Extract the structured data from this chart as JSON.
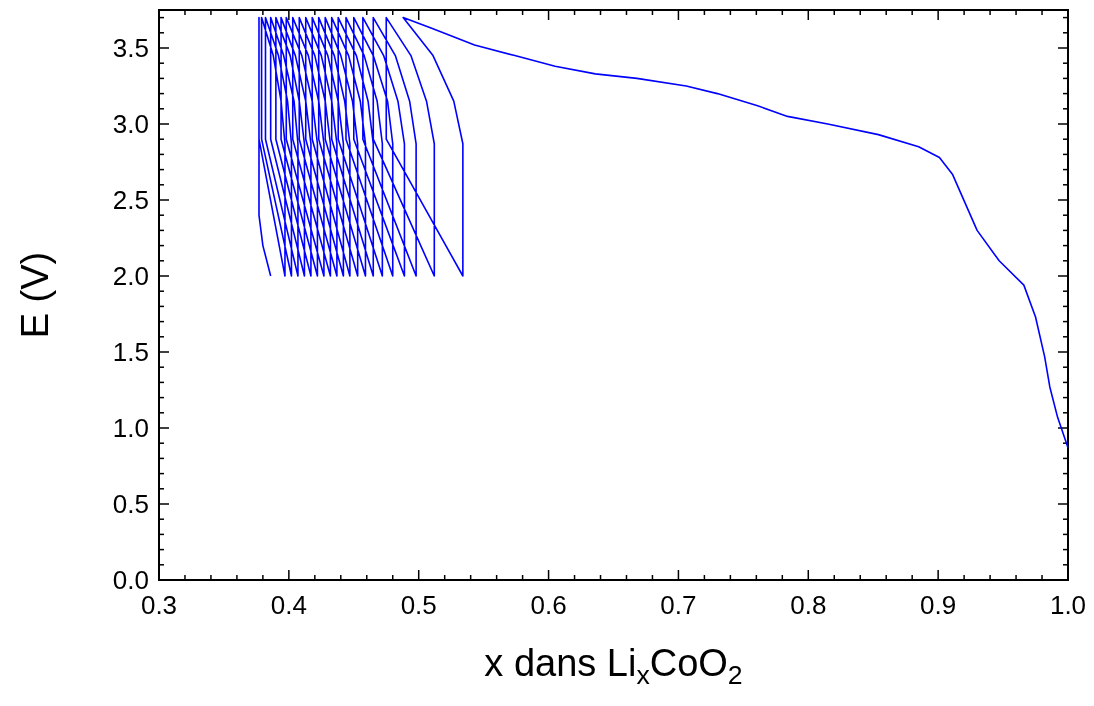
{
  "chart_data": {
    "type": "line",
    "xlabel": "x dans Li$_{x}$CoO$_{2}$",
    "ylabel": "E (V)",
    "xlim": [
      0.3,
      1.0
    ],
    "ylim": [
      0,
      3.75
    ],
    "xticks": [
      0.3,
      {
        "value": 0.32,
        "label": null
      },
      {
        "value": 0.34,
        "label": null
      },
      {
        "value": 0.36,
        "label": null
      },
      {
        "value": 0.38,
        "label": null
      },
      0.4,
      {
        "value": 0.42,
        "label": null
      },
      {
        "value": 0.44,
        "label": null
      },
      {
        "value": 0.46,
        "label": null
      },
      {
        "value": 0.48,
        "label": null
      },
      0.5,
      {
        "value": 0.52,
        "label": null
      },
      {
        "value": 0.54,
        "label": null
      },
      {
        "value": 0.56,
        "label": null
      },
      {
        "value": 0.58,
        "label": null
      },
      0.6,
      {
        "value": 0.62,
        "label": null
      },
      {
        "value": 0.64,
        "label": null
      },
      {
        "value": 0.66,
        "label": null
      },
      {
        "value": 0.68,
        "label": null
      },
      0.7,
      {
        "value": 0.72,
        "label": null
      },
      {
        "value": 0.74,
        "label": null
      },
      {
        "value": 0.76,
        "label": null
      },
      {
        "value": 0.78,
        "label": null
      },
      0.8,
      {
        "value": 0.82,
        "label": null
      },
      {
        "value": 0.84,
        "label": null
      },
      {
        "value": 0.86,
        "label": null
      },
      {
        "value": 0.88,
        "label": null
      },
      0.9,
      {
        "value": 0.92,
        "label": null
      },
      {
        "value": 0.94,
        "label": null
      },
      {
        "value": 0.96,
        "label": null
      },
      {
        "value": 0.98,
        "label": null
      },
      {
        "value": 1.0,
        "label": "1.0"
      }
    ],
    "yticks": [
      {
        "value": 0,
        "label": "0.0"
      },
      {
        "value": 0.1,
        "label": null
      },
      {
        "value": 0.2,
        "label": null
      },
      {
        "value": 0.3,
        "label": null
      },
      {
        "value": 0.4,
        "label": null
      },
      0.5,
      {
        "value": 0.6,
        "label": null
      },
      {
        "value": 0.7,
        "label": null
      },
      {
        "value": 0.8,
        "label": null
      },
      {
        "value": 0.9,
        "label": null
      },
      {
        "value": 1,
        "label": "1.0"
      },
      {
        "value": 1.1,
        "label": null
      },
      {
        "value": 1.2,
        "label": null
      },
      {
        "value": 1.3,
        "label": null
      },
      {
        "value": 1.4,
        "label": null
      },
      1.5,
      {
        "value": 1.6,
        "label": null
      },
      {
        "value": 1.7,
        "label": null
      },
      {
        "value": 1.8,
        "label": null
      },
      {
        "value": 1.9,
        "label": null
      },
      {
        "value": 2,
        "label": "2.0"
      },
      {
        "value": 2.1,
        "label": null
      },
      {
        "value": 2.2,
        "label": null
      },
      {
        "value": 2.3,
        "label": null
      },
      {
        "value": 2.4,
        "label": null
      },
      2.5,
      {
        "value": 2.6,
        "label": null
      },
      {
        "value": 2.7,
        "label": null
      },
      {
        "value": 2.8,
        "label": null
      },
      {
        "value": 2.9,
        "label": null
      },
      {
        "value": 3,
        "label": "3.0"
      },
      {
        "value": 3.1,
        "label": null
      },
      {
        "value": 3.2,
        "label": null
      },
      {
        "value": 3.3,
        "label": null
      },
      {
        "value": 3.4,
        "label": null
      },
      3.5,
      {
        "value": 3.6,
        "label": null
      },
      {
        "value": 3.7,
        "label": null
      }
    ],
    "grid": false,
    "marker": "none",
    "line_style": "solid",
    "series": [
      {
        "color": "#0000ff",
        "x": [
          1.0,
          0.992,
          0.986,
          0.982,
          0.975,
          0.966,
          0.947,
          0.93,
          0.911,
          0.901,
          0.885,
          0.854,
          0.815,
          0.784,
          0.761,
          0.73,
          0.706,
          0.668,
          0.636,
          0.605,
          0.574,
          0.543,
          0.51,
          0.488,
          0.511,
          0.527,
          0.534,
          0.534,
          0.475,
          0.475,
          0.494,
          0.506,
          0.512,
          0.512,
          0.465,
          0.465,
          0.482,
          0.493,
          0.498,
          0.498,
          0.457,
          0.457,
          0.473,
          0.484,
          0.489,
          0.489,
          0.45,
          0.45,
          0.465,
          0.476,
          0.48,
          0.48,
          0.444,
          0.444,
          0.458,
          0.468,
          0.472,
          0.472,
          0.438,
          0.438,
          0.452,
          0.461,
          0.465,
          0.465,
          0.433,
          0.433,
          0.446,
          0.455,
          0.459,
          0.459,
          0.428,
          0.428,
          0.44,
          0.449,
          0.453,
          0.453,
          0.423,
          0.423,
          0.435,
          0.443,
          0.447,
          0.447,
          0.418,
          0.418,
          0.43,
          0.438,
          0.442,
          0.442,
          0.413,
          0.413,
          0.425,
          0.433,
          0.437,
          0.437,
          0.408,
          0.408,
          0.42,
          0.428,
          0.432,
          0.432,
          0.403,
          0.403,
          0.415,
          0.423,
          0.427,
          0.427,
          0.398,
          0.398,
          0.41,
          0.418,
          0.422,
          0.422,
          0.394,
          0.394,
          0.405,
          0.413,
          0.417,
          0.417,
          0.39,
          0.39,
          0.401,
          0.408,
          0.412,
          0.412,
          0.386,
          0.386,
          0.396,
          0.404,
          0.407,
          0.407,
          0.382,
          0.382,
          0.392,
          0.399,
          0.402,
          0.402,
          0.379,
          0.379,
          0.388,
          0.394,
          0.397,
          0.397,
          0.377,
          0.377,
          0.377,
          0.38,
          0.386
        ],
        "values": [
          0.87,
          1.07,
          1.27,
          1.47,
          1.73,
          1.94,
          2.1,
          2.3,
          2.67,
          2.78,
          2.85,
          2.93,
          3.0,
          3.05,
          3.12,
          3.2,
          3.25,
          3.3,
          3.33,
          3.38,
          3.45,
          3.52,
          3.63,
          3.7,
          3.45,
          3.15,
          2.87,
          2.0,
          2.9,
          3.7,
          3.45,
          3.15,
          2.87,
          2.0,
          2.9,
          3.7,
          3.45,
          3.15,
          2.87,
          2.0,
          2.9,
          3.7,
          3.45,
          3.15,
          2.87,
          2.0,
          2.9,
          3.7,
          3.45,
          3.15,
          2.87,
          2.0,
          2.9,
          3.7,
          3.45,
          3.15,
          2.87,
          2.0,
          2.9,
          3.7,
          3.45,
          3.15,
          2.87,
          2.0,
          2.9,
          3.7,
          3.45,
          3.15,
          2.87,
          2.0,
          2.9,
          3.7,
          3.45,
          3.15,
          2.87,
          2.0,
          2.9,
          3.7,
          3.45,
          3.15,
          2.87,
          2.0,
          2.9,
          3.7,
          3.45,
          3.15,
          2.87,
          2.0,
          2.9,
          3.7,
          3.45,
          3.15,
          2.87,
          2.0,
          2.9,
          3.7,
          3.45,
          3.15,
          2.87,
          2.0,
          2.9,
          3.7,
          3.45,
          3.15,
          2.87,
          2.0,
          2.9,
          3.7,
          3.45,
          3.15,
          2.87,
          2.0,
          2.9,
          3.7,
          3.45,
          3.15,
          2.87,
          2.0,
          2.9,
          3.7,
          3.45,
          3.15,
          2.87,
          2.0,
          2.9,
          3.7,
          3.45,
          3.15,
          2.87,
          2.0,
          2.9,
          3.7,
          3.45,
          3.15,
          2.87,
          2.0,
          2.9,
          3.7,
          3.45,
          3.15,
          2.87,
          2.0,
          2.9,
          3.7,
          2.4,
          2.2,
          2.0
        ]
      }
    ]
  }
}
